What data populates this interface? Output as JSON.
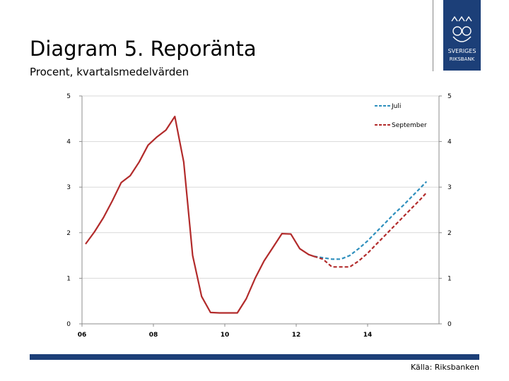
{
  "header": {
    "title": "Diagram 5. Reporänta",
    "subtitle": "Procent, kvartalsmedelvärden"
  },
  "logo": {
    "icon": "sveriges-riksbank-logo",
    "text": "SVERIGES RIKSBANK",
    "color": "#1c3f78"
  },
  "footer": {
    "source": "Källa: Riksbanken",
    "bar_color": "#1c3f78"
  },
  "chart_data": {
    "type": "line",
    "title": "Diagram 5. Reporänta",
    "subtitle": "Procent, kvartalsmedelvärden",
    "xlabel": "",
    "ylabel": "",
    "xlim": [
      2006.0,
      2016.0
    ],
    "ylim": [
      0,
      5
    ],
    "x_ticks": [
      2006,
      2008,
      2010,
      2012,
      2014
    ],
    "x_tick_labels": [
      "06",
      "08",
      "10",
      "12",
      "14"
    ],
    "y_ticks": [
      0,
      1,
      2,
      3,
      4,
      5
    ],
    "y_tick_labels": [
      "0",
      "1",
      "2",
      "3",
      "4",
      "5"
    ],
    "secondary_y_axis": true,
    "grid": "horizontal",
    "legend_position": "top-right",
    "series": [
      {
        "name": "Juli",
        "style": "dashed",
        "color": "#2e8fbd",
        "x": [
          2012.5,
          2012.75,
          2013.0,
          2013.25,
          2013.5,
          2013.75,
          2014.0,
          2014.25,
          2014.5,
          2014.75,
          2015.0,
          2015.25,
          2015.5,
          2015.65
        ],
        "y": [
          1.48,
          1.45,
          1.42,
          1.42,
          1.5,
          1.65,
          1.82,
          2.02,
          2.22,
          2.42,
          2.6,
          2.8,
          3.0,
          3.12
        ]
      },
      {
        "name": "September",
        "style": "dashed",
        "color": "#b22b2b",
        "x": [
          2012.5,
          2012.75,
          2013.0,
          2013.25,
          2013.5,
          2013.75,
          2014.0,
          2014.25,
          2014.5,
          2014.75,
          2015.0,
          2015.25,
          2015.5,
          2015.65
        ],
        "y": [
          1.48,
          1.42,
          1.25,
          1.25,
          1.25,
          1.38,
          1.55,
          1.75,
          1.95,
          2.15,
          2.35,
          2.55,
          2.75,
          2.88
        ]
      },
      {
        "name": "",
        "style": "solid",
        "color": "#b22b2b",
        "x": [
          2006.1,
          2006.35,
          2006.6,
          2006.85,
          2007.1,
          2007.35,
          2007.6,
          2007.85,
          2008.1,
          2008.35,
          2008.6,
          2008.85,
          2009.1,
          2009.35,
          2009.6,
          2009.85,
          2010.1,
          2010.35,
          2010.6,
          2010.85,
          2011.1,
          2011.35,
          2011.6,
          2011.85,
          2012.1,
          2012.35,
          2012.5
        ],
        "y": [
          1.75,
          2.02,
          2.33,
          2.7,
          3.1,
          3.25,
          3.55,
          3.92,
          4.1,
          4.25,
          4.55,
          3.55,
          1.5,
          0.6,
          0.25,
          0.24,
          0.24,
          0.24,
          0.55,
          1.0,
          1.38,
          1.68,
          1.98,
          1.97,
          1.65,
          1.52,
          1.48
        ]
      }
    ]
  }
}
